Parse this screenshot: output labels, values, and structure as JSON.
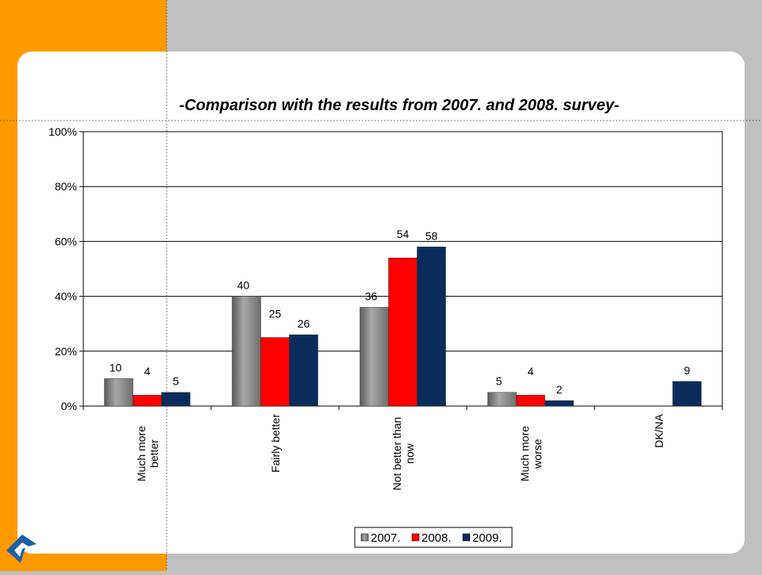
{
  "chart_data": {
    "type": "bar",
    "title": "-Comparison with the results from 2007. and 2008. survey-",
    "categories": [
      "Much more better",
      "Fairly better",
      "Not better than now",
      "Much more worse",
      "DK/NA"
    ],
    "series": [
      {
        "name": "2007.",
        "color": "#8c8c8c",
        "values": [
          10,
          40,
          36,
          5,
          null
        ]
      },
      {
        "name": "2008.",
        "color": "#ff0000",
        "values": [
          4,
          25,
          54,
          4,
          null
        ]
      },
      {
        "name": "2009.",
        "color": "#0a2c5c",
        "values": [
          5,
          26,
          58,
          2,
          9
        ]
      }
    ],
    "ylim": [
      0,
      100
    ],
    "yticks": [
      {
        "value": 0,
        "label": "0%"
      },
      {
        "value": 20,
        "label": "20%"
      },
      {
        "value": 40,
        "label": "40%"
      },
      {
        "value": 60,
        "label": "60%"
      },
      {
        "value": 80,
        "label": "80%"
      },
      {
        "value": 100,
        "label": "100%"
      }
    ],
    "grid": true
  }
}
